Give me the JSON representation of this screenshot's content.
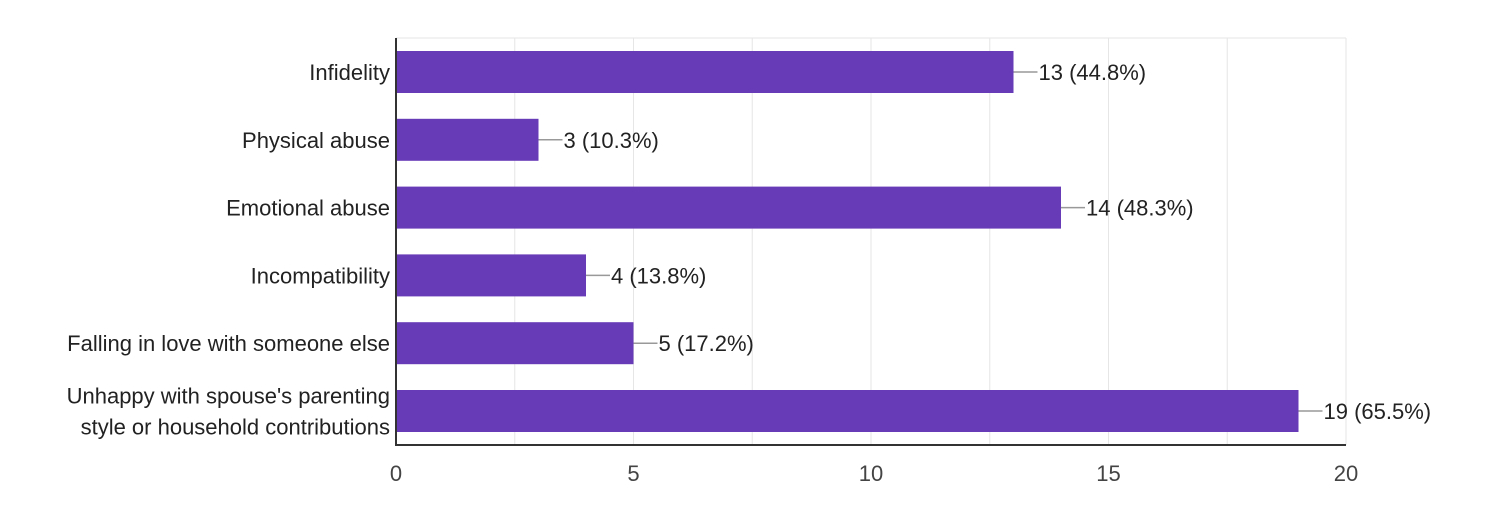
{
  "chart_data": {
    "type": "bar",
    "orientation": "horizontal",
    "categories": [
      [
        "Infidelity"
      ],
      [
        "Physical abuse"
      ],
      [
        "Emotional abuse"
      ],
      [
        "Incompatibility"
      ],
      [
        "Falling in love with someone else"
      ],
      [
        "Unhappy with spouse's parenting",
        "style or household contributions"
      ]
    ],
    "values": [
      13,
      3,
      14,
      4,
      5,
      19
    ],
    "data_labels": [
      "13 (44.8%)",
      "3 (10.3%)",
      "14 (48.3%)",
      "4 (13.8%)",
      "5 (17.2%)",
      "19 (65.5%)"
    ],
    "xlim": [
      0,
      20
    ],
    "xticks": [
      0,
      5,
      10,
      15,
      20
    ],
    "grid": true,
    "title": "",
    "xlabel": "",
    "ylabel": "",
    "colors": {
      "bar": "#673ab7",
      "grid": "#e6e6e6",
      "axis": "#333333",
      "leader": "#999999"
    }
  }
}
